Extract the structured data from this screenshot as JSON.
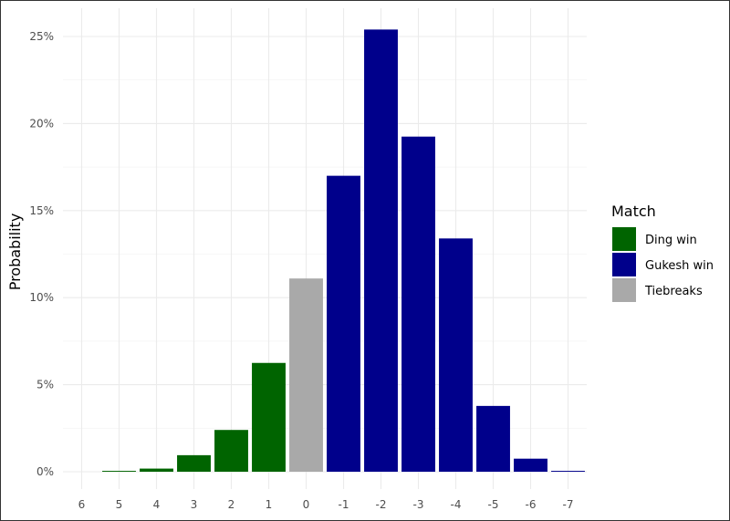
{
  "chart_data": {
    "type": "bar",
    "categories": [
      "6",
      "5",
      "4",
      "3",
      "2",
      "1",
      "0",
      "-1",
      "-2",
      "-3",
      "-4",
      "-5",
      "-6",
      "-7"
    ],
    "values": [
      0,
      0.05,
      0.18,
      0.95,
      2.4,
      6.25,
      11.1,
      17.0,
      25.4,
      19.25,
      13.4,
      3.78,
      0.75,
      0.05
    ],
    "groups": [
      "Ding win",
      "Ding win",
      "Ding win",
      "Ding win",
      "Ding win",
      "Ding win",
      "Tiebreaks",
      "Gukesh win",
      "Gukesh win",
      "Gukesh win",
      "Gukesh win",
      "Gukesh win",
      "Gukesh win",
      "Gukesh win"
    ],
    "xlabel": "",
    "ylabel": "Probability",
    "ylim": [
      0,
      27
    ],
    "yticks": [
      0,
      5,
      10,
      15,
      20,
      25
    ],
    "ytick_labels": [
      "0%",
      "5%",
      "10%",
      "15%",
      "20%",
      "25%"
    ],
    "grid": true,
    "legend": {
      "title": "Match",
      "position": "right",
      "entries": [
        {
          "label": "Ding win",
          "color": "#006400"
        },
        {
          "label": "Gukesh win",
          "color": "#00008B"
        },
        {
          "label": "Tiebreaks",
          "color": "#A9A9A9"
        }
      ]
    }
  }
}
